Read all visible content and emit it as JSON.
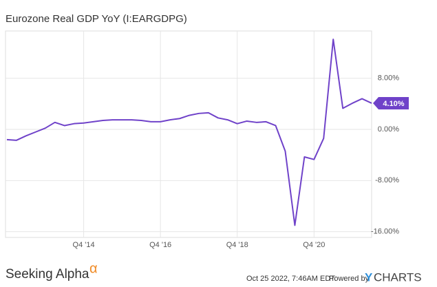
{
  "chart_data": {
    "type": "line",
    "title": "Eurozone Real GDP YoY (I:EARGDPG)",
    "categories": [
      null,
      null,
      null,
      null,
      null,
      null,
      null,
      null,
      "Q4 '14",
      null,
      null,
      null,
      null,
      null,
      null,
      null,
      "Q4 '16",
      null,
      null,
      null,
      null,
      null,
      null,
      null,
      "Q4 '18",
      null,
      null,
      null,
      null,
      null,
      null,
      null,
      "Q4 '20",
      null,
      null,
      null,
      null,
      null,
      null
    ],
    "series": [
      {
        "name": "Eurozone Real GDP YoY",
        "color": "#6f42c9",
        "values": [
          -1.6,
          -1.7,
          -1.0,
          -0.4,
          0.2,
          1.1,
          0.6,
          0.9,
          1.0,
          1.2,
          1.4,
          1.5,
          1.5,
          1.5,
          1.4,
          1.2,
          1.2,
          1.5,
          1.7,
          2.2,
          2.5,
          2.6,
          1.8,
          1.5,
          0.9,
          1.3,
          1.1,
          1.2,
          0.6,
          -3.4,
          -15.0,
          -4.3,
          -4.7,
          -1.4,
          14.1,
          3.3,
          4.1,
          4.8,
          4.1
        ],
        "value_labels": [
          null,
          null,
          null,
          null,
          null,
          null,
          null,
          null,
          null,
          null,
          null,
          null,
          null,
          null,
          null,
          null,
          null,
          null,
          null,
          null,
          null,
          null,
          null,
          null,
          null,
          null,
          null,
          null,
          null,
          null,
          null,
          null,
          null,
          null,
          null,
          null,
          null,
          null,
          "4.10%"
        ]
      }
    ],
    "ylim": [
      -16.9,
      15.4
    ],
    "yticks": [
      {
        "value": 8,
        "label": "8.00%"
      },
      {
        "value": 0,
        "label": "0.00%"
      },
      {
        "value": -8,
        "label": "-8.00%"
      },
      {
        "value": -16,
        "label": "-16.00%"
      }
    ],
    "grid": true,
    "footer": {
      "brand": "Seeking Alpha",
      "brand_symbol": "α",
      "timestamp": "Oct 25 2022, 7:46AM EDT.",
      "powered_by": "Powered by",
      "ycharts_y": "Y",
      "ycharts_rest": "CHARTS"
    }
  }
}
